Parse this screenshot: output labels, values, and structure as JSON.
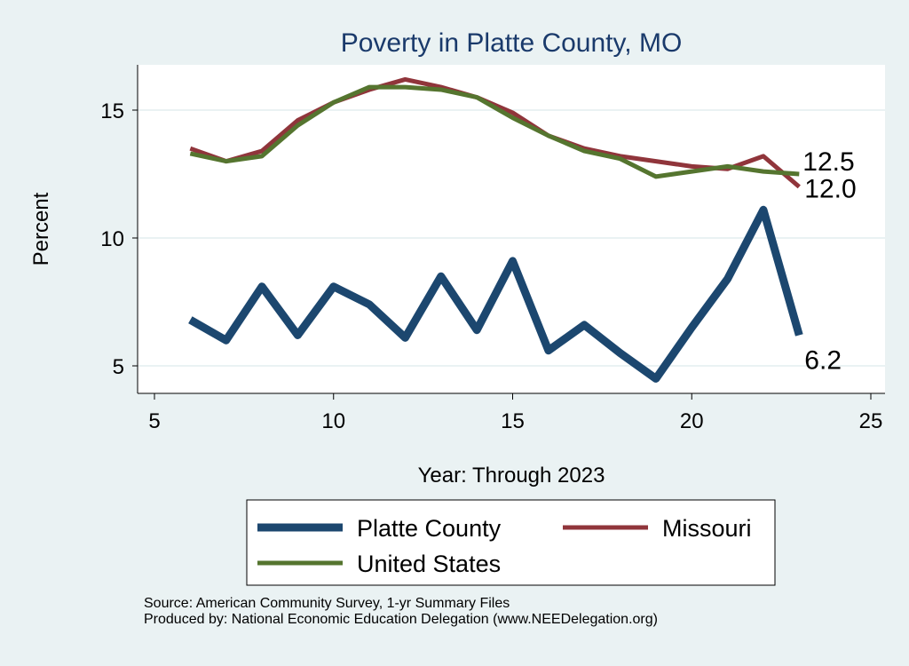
{
  "chart_data": {
    "type": "line",
    "title": "Poverty in Platte County, MO",
    "xlabel": "Year: Through 2023",
    "ylabel": "Percent",
    "xlim": [
      5,
      25
    ],
    "ylim": [
      4,
      16.7
    ],
    "xticks": [
      5,
      10,
      15,
      20,
      25
    ],
    "yticks": [
      5,
      10,
      15
    ],
    "grid": true,
    "legend_position": "bottom",
    "x": [
      6,
      7,
      8,
      9,
      10,
      11,
      12,
      13,
      14,
      15,
      16,
      17,
      18,
      19,
      20,
      21,
      22,
      23
    ],
    "series": [
      {
        "name": "Platte County",
        "color": "#1c476f",
        "values": [
          6.8,
          6.0,
          8.1,
          6.2,
          8.1,
          7.4,
          6.1,
          8.5,
          6.4,
          9.1,
          5.6,
          6.6,
          5.5,
          4.5,
          6.5,
          8.4,
          11.1,
          6.2
        ],
        "end_label": "6.2"
      },
      {
        "name": "Missouri",
        "color": "#90353b",
        "values": [
          13.5,
          13.0,
          13.4,
          14.6,
          15.3,
          15.8,
          16.2,
          15.9,
          15.5,
          14.9,
          14.0,
          13.5,
          13.2,
          13.0,
          12.8,
          12.7,
          13.2,
          12.0
        ],
        "end_label": "12.0"
      },
      {
        "name": "United States",
        "color": "#55752f",
        "values": [
          13.3,
          13.0,
          13.2,
          14.4,
          15.3,
          15.9,
          15.9,
          15.8,
          15.5,
          14.7,
          14.0,
          13.4,
          13.1,
          12.4,
          12.6,
          12.8,
          12.6,
          12.5
        ],
        "end_label": "12.5"
      }
    ]
  },
  "notes": {
    "source": "Source: American Community Survey, 1-yr Summary Files",
    "produced": "Produced by: National Economic Education Delegation (www.NEEDelegation.org)"
  }
}
